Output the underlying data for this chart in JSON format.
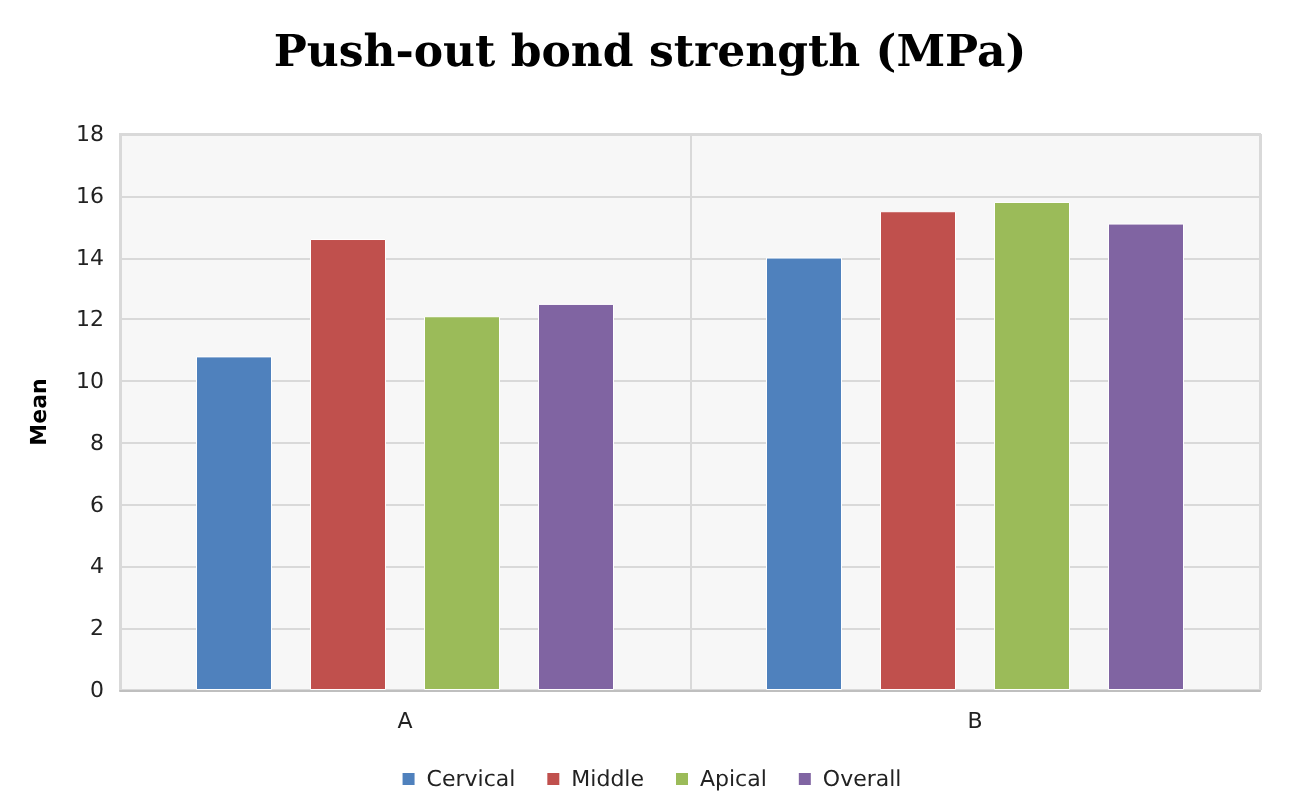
{
  "chart_data": {
    "type": "bar",
    "title": "Push-out bond strength (MPa)",
    "ylabel": "Mean",
    "categories": [
      "A",
      "B"
    ],
    "series": [
      {
        "name": "Cervical",
        "color": "#4f81bd",
        "values": [
          10.8,
          14.0
        ]
      },
      {
        "name": "Middle",
        "color": "#c0504d",
        "values": [
          14.6,
          15.5
        ]
      },
      {
        "name": "Apical",
        "color": "#9bbb59",
        "values": [
          12.1,
          15.8
        ]
      },
      {
        "name": "Overall",
        "color": "#8064a2",
        "values": [
          12.5,
          15.1
        ]
      }
    ],
    "ylim": [
      0,
      18
    ],
    "yticks": [
      0,
      2,
      4,
      6,
      8,
      10,
      12,
      14,
      16,
      18
    ],
    "grid": true,
    "legend": "bottom"
  }
}
